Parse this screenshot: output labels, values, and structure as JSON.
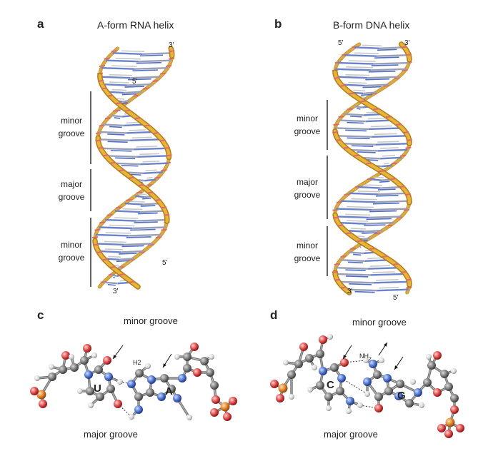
{
  "panels": {
    "a": {
      "letter": "a",
      "title": "A-form RNA helix",
      "grooves": [
        {
          "line1": "minor",
          "line2": "groove"
        },
        {
          "line1": "major",
          "line2": "groove"
        },
        {
          "line1": "minor",
          "line2": "groove"
        }
      ],
      "ends": {
        "top_right": "3'",
        "upper_inner": "5'",
        "lower_right": "5'",
        "bottom": "3'"
      }
    },
    "b": {
      "letter": "b",
      "title": "B-form DNA helix",
      "grooves": [
        {
          "line1": "minor",
          "line2": "groove"
        },
        {
          "line1": "major",
          "line2": "groove"
        },
        {
          "line1": "minor",
          "line2": "groove"
        }
      ],
      "ends": {
        "top_left": "5'",
        "top_right": "3'",
        "bottom_left": "3'",
        "bottom_right": "5'"
      }
    },
    "c": {
      "letter": "c",
      "minor_label": "minor groove",
      "major_label": "major groove",
      "base_left": "U",
      "base_right": "A",
      "atom_label": "H2"
    },
    "d": {
      "letter": "d",
      "minor_label": "minor groove",
      "major_label": "major groove",
      "base_left": "C",
      "base_right": "G",
      "atom_label_main": "NH",
      "atom_label_sub": "2"
    }
  },
  "colors": {
    "backbone": "#e7b33a",
    "backbone_dark": "#b07f16",
    "carbon": "#8a8a8a",
    "nitrogen": "#5a7fd0",
    "oxygen": "#e05454",
    "phosphorus": "#e0882a",
    "hydrogen": "#dddddd"
  }
}
